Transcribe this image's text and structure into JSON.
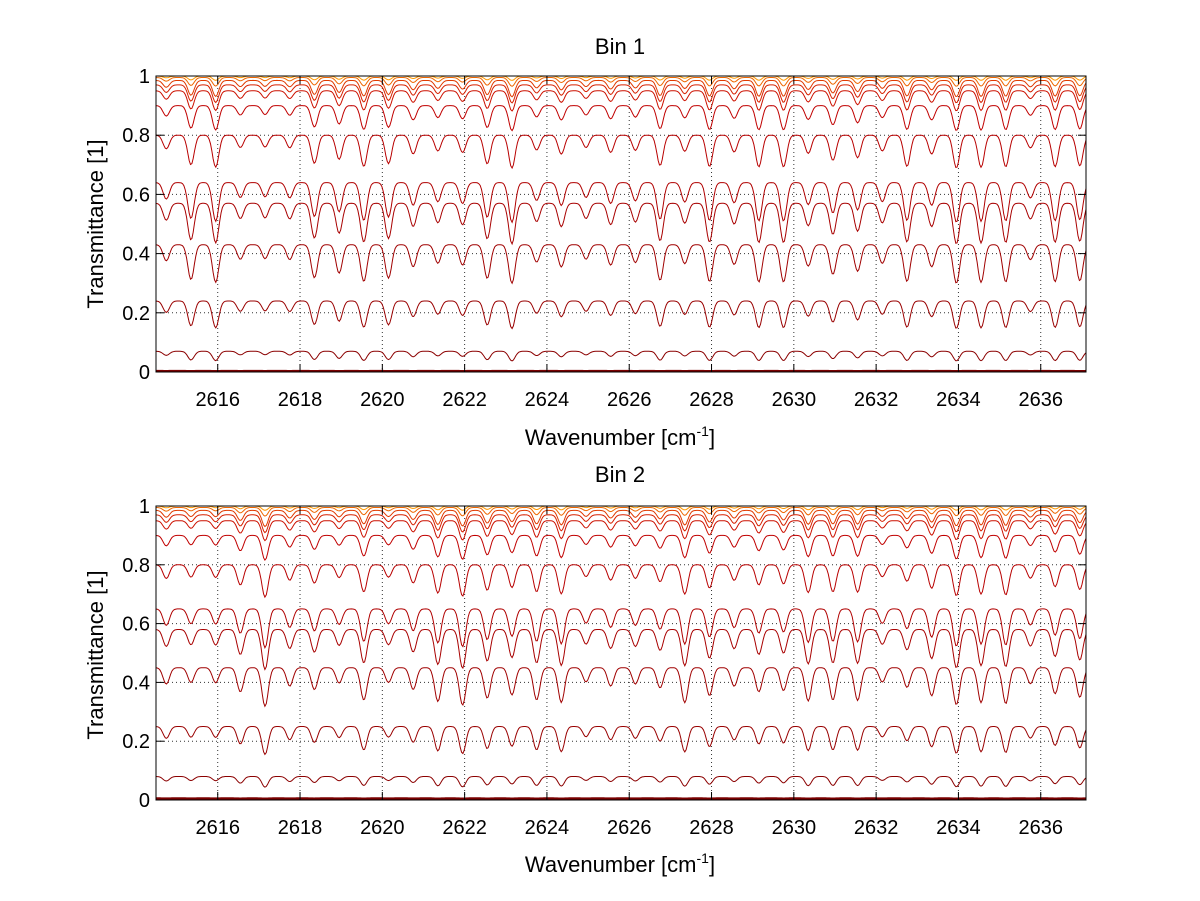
{
  "chart_data": [
    {
      "type": "line",
      "title": "Bin 1",
      "xlabel": "Wavenumber [cm",
      "xlabel_sup": "-1",
      "xlabel_close": "]",
      "ylabel": "Transmittance [1]",
      "xlim": [
        2614.5,
        2637.1
      ],
      "ylim": [
        0,
        1
      ],
      "xticks": [
        2616,
        2618,
        2620,
        2622,
        2624,
        2626,
        2628,
        2630,
        2632,
        2634,
        2636
      ],
      "yticks": [
        0,
        0.2,
        0.4,
        0.6,
        0.8,
        1
      ],
      "ytick_labels": [
        "0",
        "0.2",
        "0.4",
        "0.6",
        "0.8",
        "1"
      ],
      "grid": true,
      "line_spacing_cm1": 0.6,
      "series_baselines": [
        0.003,
        0.07,
        0.24,
        0.43,
        0.57,
        0.64,
        0.8,
        0.9,
        0.95,
        0.97,
        0.985,
        0.995,
        1.0
      ],
      "series_colors": [
        "#7a0000",
        "#8b0000",
        "#990000",
        "#a00000",
        "#a80000",
        "#b00000",
        "#b80000",
        "#c00000",
        "#cc1100",
        "#d62000",
        "#e03a00",
        "#ee6600",
        "#ff9900"
      ]
    },
    {
      "type": "line",
      "title": "Bin 2",
      "xlabel": "Wavenumber [cm",
      "xlabel_sup": "-1",
      "xlabel_close": "]",
      "ylabel": "Transmittance [1]",
      "xlim": [
        2614.5,
        2637.1
      ],
      "ylim": [
        0,
        1
      ],
      "xticks": [
        2616,
        2618,
        2620,
        2622,
        2624,
        2626,
        2628,
        2630,
        2632,
        2634,
        2636
      ],
      "yticks": [
        0,
        0.2,
        0.4,
        0.6,
        0.8,
        1
      ],
      "ytick_labels": [
        "0",
        "0.2",
        "0.4",
        "0.6",
        "0.8",
        "1"
      ],
      "grid": true,
      "line_spacing_cm1": 0.6,
      "series_baselines": [
        0.005,
        0.08,
        0.25,
        0.45,
        0.58,
        0.65,
        0.8,
        0.9,
        0.95,
        0.97,
        0.985,
        0.995,
        1.0
      ],
      "series_colors": [
        "#7a0000",
        "#8b0000",
        "#990000",
        "#a00000",
        "#a80000",
        "#b00000",
        "#b80000",
        "#c00000",
        "#cc1100",
        "#d62000",
        "#e03a00",
        "#ee6600",
        "#ff9900"
      ]
    }
  ]
}
